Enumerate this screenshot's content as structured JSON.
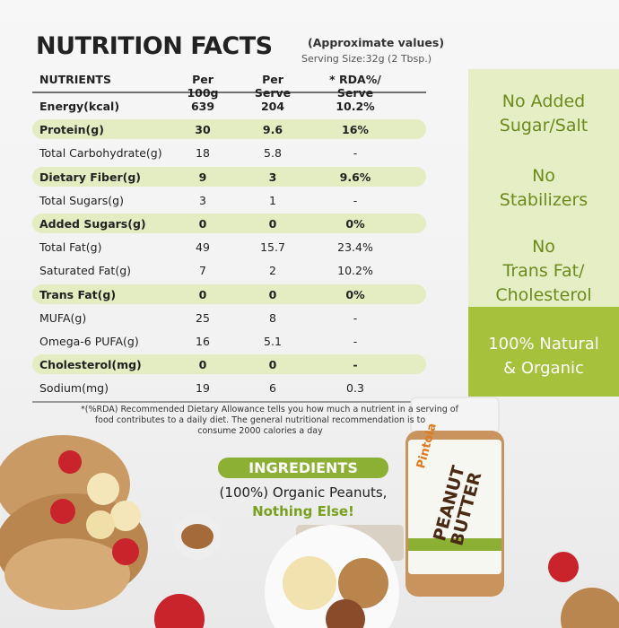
{
  "header": {
    "title": "NUTRITION FACTS",
    "note": "(Approximate values)",
    "serving": "Serving Size:32g (2 Tbsp.)"
  },
  "table": {
    "columns": [
      "NUTRIENTS",
      "Per 100g",
      "Per Serve",
      "* RDA%/ Serve"
    ],
    "rows": [
      [
        "Energy(kcal)",
        "639",
        "204",
        "10.2%"
      ],
      [
        "Protein(g)",
        "30",
        "9.6",
        "16%"
      ],
      [
        "Total Carbohydrate(g)",
        "18",
        "5.8",
        "-"
      ],
      [
        "Dietary Fiber(g)",
        "9",
        "3",
        "9.6%"
      ],
      [
        "Total Sugars(g)",
        "3",
        "1",
        "-"
      ],
      [
        "Added Sugars(g)",
        "0",
        "0",
        "0%"
      ],
      [
        "Total Fat(g)",
        "49",
        "15.7",
        "23.4%"
      ],
      [
        "Saturated Fat(g)",
        "7",
        "2",
        "10.2%"
      ],
      [
        "Trans Fat(g)",
        "0",
        "0",
        "0%"
      ],
      [
        "MUFA(g)",
        "25",
        "8",
        "-"
      ],
      [
        "Omega-6 PUFA(g)",
        "16",
        "5.1",
        "-"
      ],
      [
        "Cholesterol(mg)",
        "0",
        "0",
        "-"
      ],
      [
        "Sodium(mg)",
        "19",
        "6",
        "0.3"
      ]
    ]
  },
  "footnote": [
    "*(%RDA) Recommended Dietary Allowance tells you how much a nutrient in a serving of",
    "food contributes to a daily diet. The general nutritional recommendation is to",
    "consume 2000 calories a day"
  ],
  "claims": [
    [
      "No Added",
      "Sugar/Salt"
    ],
    [
      "No",
      "Stabilizers"
    ],
    [
      "No",
      "Trans Fat/",
      "Cholesterol"
    ]
  ],
  "highlight_claim": [
    "100% Natural",
    "& Organic"
  ],
  "ingredients": {
    "heading": "INGREDIENTS",
    "line1": "(100%) Organic Peanuts,",
    "line2": "Nothing Else!"
  },
  "jar": {
    "brand": "Pintola",
    "product": "PEANUT BUTTER"
  }
}
